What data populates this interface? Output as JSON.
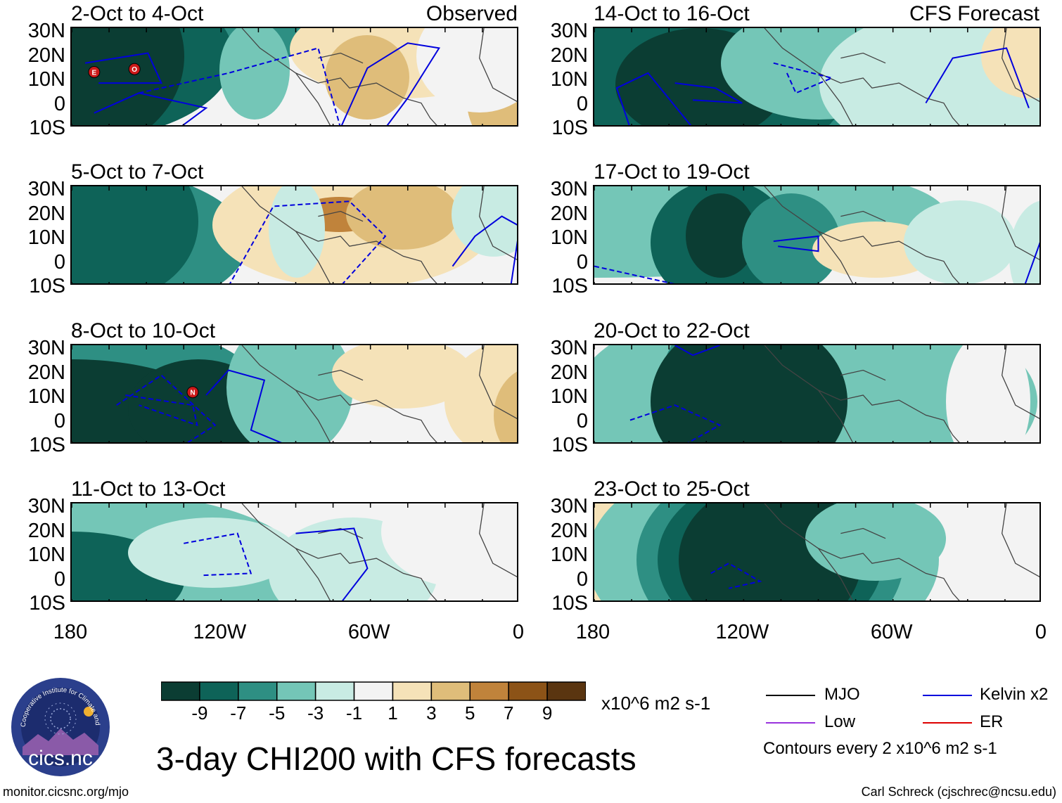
{
  "header": {
    "observed_label": "Observed",
    "forecast_label": "CFS Forecast"
  },
  "panels": [
    {
      "title": "2-Oct to 4-Oct",
      "kind": "observed",
      "markers": [
        "E",
        "O"
      ]
    },
    {
      "title": "5-Oct to 7-Oct",
      "kind": "observed",
      "markers": []
    },
    {
      "title": "8-Oct to 10-Oct",
      "kind": "observed",
      "markers": [
        "N"
      ]
    },
    {
      "title": "11-Oct to 13-Oct",
      "kind": "observed",
      "markers": []
    },
    {
      "title": "14-Oct to 16-Oct",
      "kind": "forecast",
      "markers": []
    },
    {
      "title": "17-Oct to 19-Oct",
      "kind": "forecast",
      "markers": []
    },
    {
      "title": "20-Oct to 22-Oct",
      "kind": "forecast",
      "markers": []
    },
    {
      "title": "23-Oct to 25-Oct",
      "kind": "forecast",
      "markers": []
    }
  ],
  "axes": {
    "lat_labels": [
      "30N",
      "20N",
      "10N",
      "0",
      "10S"
    ],
    "lon_labels": [
      "180",
      "120W",
      "60W",
      "0"
    ]
  },
  "colorbar": {
    "colors": [
      "#0b3d33",
      "#0e6358",
      "#2e8f83",
      "#74c6b7",
      "#c8ebe3",
      "#f3f3f3",
      "#f5e2b8",
      "#dfbd7a",
      "#c0833b",
      "#8c5317",
      "#5a3510"
    ],
    "tick_labels": [
      "-9",
      "-7",
      "-5",
      "-3",
      "-1",
      "1",
      "3",
      "5",
      "7",
      "9"
    ],
    "units": "x10^6 m2 s-1"
  },
  "legend": {
    "items": [
      {
        "label": "MJO",
        "color": "#000000"
      },
      {
        "label": "Kelvin x2",
        "color": "#0000dd"
      },
      {
        "label": "Low",
        "color": "#9933dd"
      },
      {
        "label": "ER",
        "color": "#dd0000"
      }
    ],
    "contour_note": "Contours every 2 x10^6 m2 s-1"
  },
  "title": "3-day CHI200 with CFS forecasts",
  "logo_text": "cics.nc",
  "logo_ring_text": "Cooperative Institute for Climate and Satellites",
  "footer": {
    "left": "monitor.cicsnc.org/mjo",
    "right": "Carl Schreck (cjschrec@ncsu.edu)"
  }
}
